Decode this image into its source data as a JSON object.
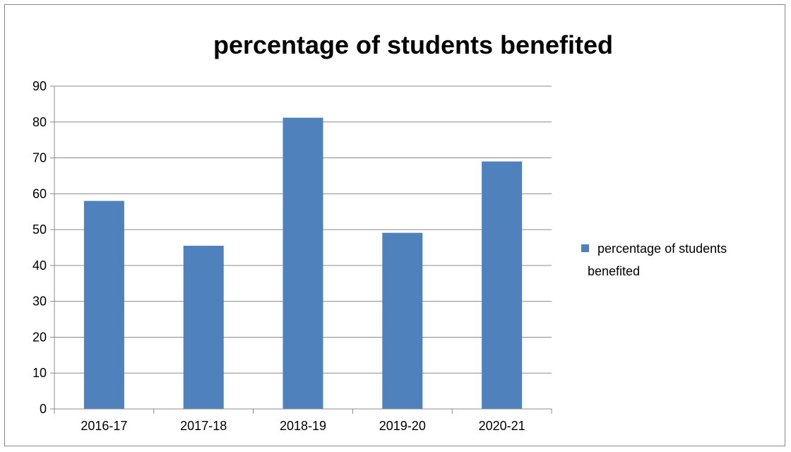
{
  "chart_data": {
    "type": "bar",
    "title": "percentage of students benefited",
    "xlabel": "",
    "ylabel": "",
    "categories": [
      "2016-17",
      "2017-18",
      "2018-19",
      "2019-20",
      "2020-21"
    ],
    "series": [
      {
        "name": "percentage of students benefited",
        "values": [
          58,
          45.5,
          81.2,
          49.1,
          69
        ],
        "color": "#4f81bd"
      }
    ],
    "ylim": [
      0,
      90
    ],
    "yticks": [
      "0",
      "10",
      "20",
      "30",
      "40",
      "50",
      "60",
      "70",
      "80",
      "90"
    ],
    "grid": true,
    "legend_position": "right",
    "legend_lines": [
      "percentage of students",
      "benefited"
    ]
  }
}
